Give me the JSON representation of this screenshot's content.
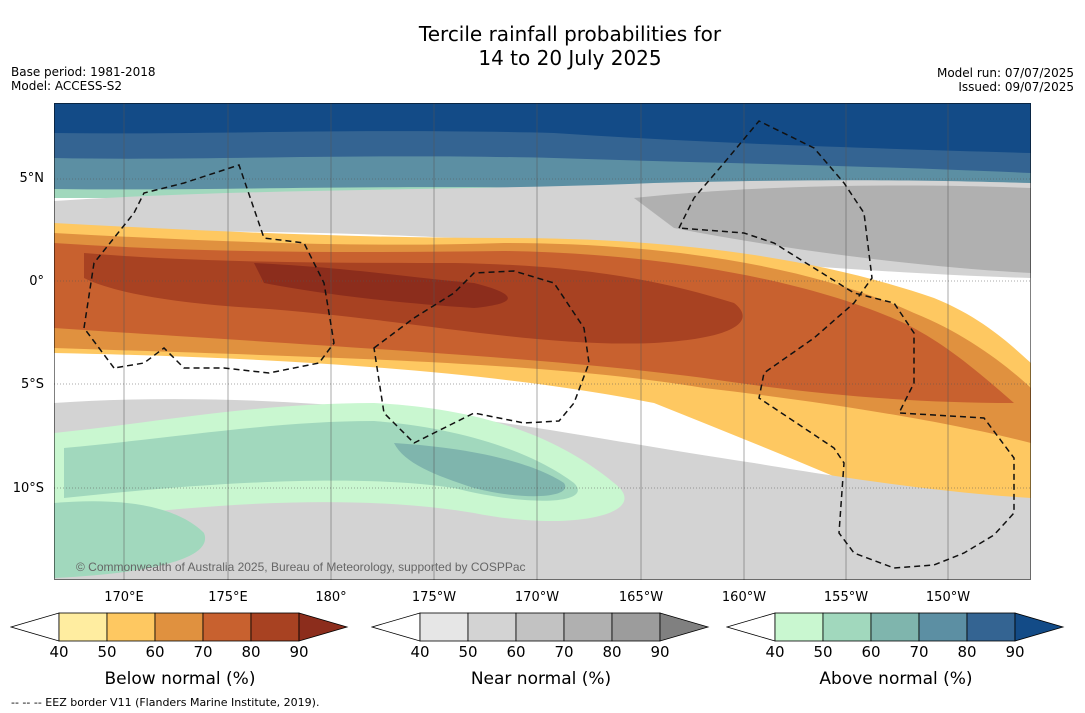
{
  "title_line1": "Tercile rainfall probabilities for",
  "title_line2": "14 to 20 July 2025",
  "base_period": "Base period: 1981-2018",
  "model": "Model: ACCESS-S2",
  "model_run": "Model run: 07/07/2025",
  "issued": "Issued: 09/07/2025",
  "credit": "© Commonwealth of Australia 2025, Bureau of Meteorology, supported by COSPPac",
  "footnote": "-- -- -- EEZ border V11 (Flanders Marine Institute, 2019).",
  "lat_labels": [
    "5°N",
    "0°",
    "5°S",
    "10°S"
  ],
  "lon_labels": [
    "170°E",
    "175°E",
    "180°",
    "175°W",
    "170°W",
    "165°W",
    "160°W",
    "155°W",
    "150°W"
  ],
  "colorbars": [
    {
      "label": "Below normal (%)",
      "ticks": [
        "40",
        "50",
        "60",
        "70",
        "80",
        "90"
      ],
      "colors": [
        "#ffffff",
        "#ffeda0",
        "#fec861",
        "#e0913f",
        "#c8612f",
        "#a84222",
        "#8c2d1c"
      ]
    },
    {
      "label": "Near normal (%)",
      "ticks": [
        "40",
        "50",
        "60",
        "70",
        "80",
        "90"
      ],
      "colors": [
        "#ffffff",
        "#e6e6e6",
        "#d3d3d3",
        "#c2c2c2",
        "#b0b0b0",
        "#9c9c9c",
        "#808080"
      ]
    },
    {
      "label": "Above normal (%)",
      "ticks": [
        "40",
        "50",
        "60",
        "70",
        "80",
        "90"
      ],
      "colors": [
        "#ffffff",
        "#c9f7d0",
        "#a1d8bd",
        "#7fb5ad",
        "#5c8fa3",
        "#346492",
        "#134b87"
      ]
    }
  ]
}
